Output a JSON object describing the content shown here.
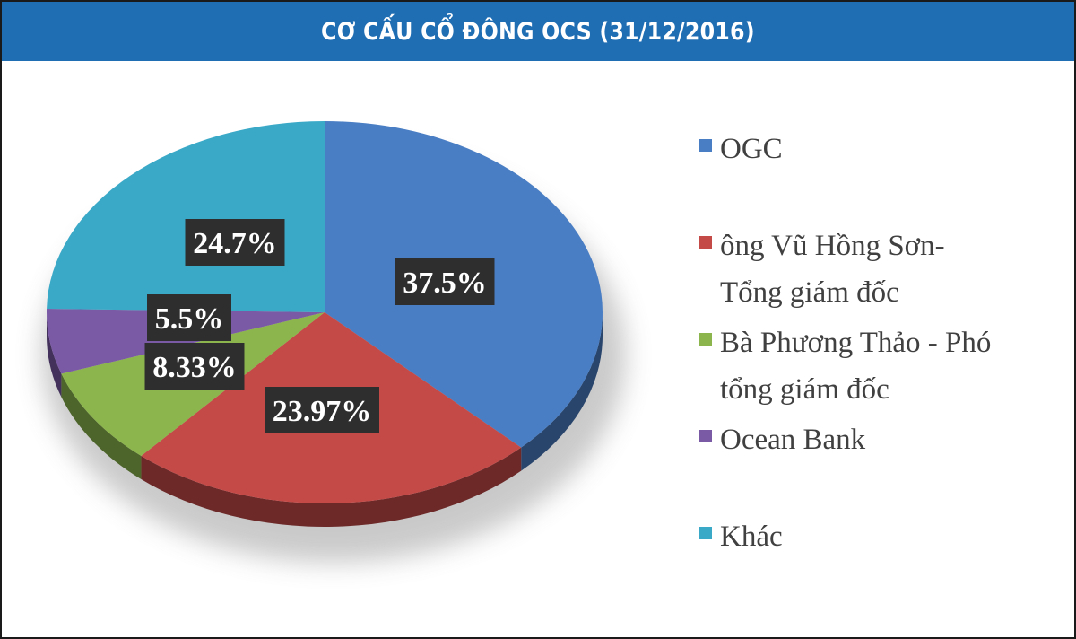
{
  "title": "CƠ CẤU CỔ ĐÔNG OCS (31/12/2016)",
  "colors": {
    "title_bg": "#1f6db3",
    "ogc": "#4a7ec4",
    "vu_hong_son": "#c44a48",
    "phuong_thao": "#8cb54d",
    "ocean_bank": "#7a59a5",
    "khac": "#3aa9c8",
    "label_box": "#2e2e2e"
  },
  "chart_data": {
    "type": "pie",
    "title": "CƠ CẤU CỔ ĐÔNG OCS (31/12/2016)",
    "legend_position": "right",
    "style": "3d",
    "slices": [
      {
        "name": "OGC",
        "value": 37.5,
        "label": "37.5%",
        "color": "#4a7ec4"
      },
      {
        "name": "ông Vũ Hồng Sơn-\nTổng giám đốc",
        "value": 23.97,
        "label": "23.97%",
        "color": "#c44a48"
      },
      {
        "name": "Bà  Phương Thảo - Phó\ntổng giám đốc",
        "value": 8.33,
        "label": "8.33%",
        "color": "#8cb54d"
      },
      {
        "name": "Ocean Bank",
        "value": 5.5,
        "label": "5.5%",
        "color": "#7a59a5"
      },
      {
        "name": "Khác",
        "value": 24.7,
        "label": "24.7%",
        "color": "#3aa9c8"
      }
    ]
  }
}
